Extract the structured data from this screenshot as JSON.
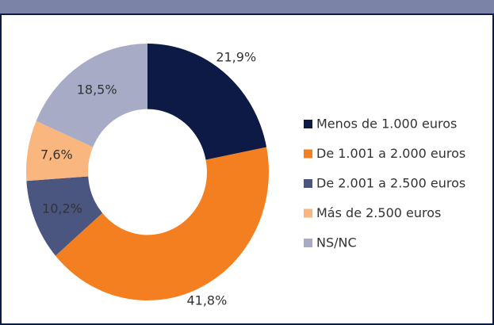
{
  "chart_data": {
    "type": "donut",
    "categories": [
      "Menos de 1.000 euros",
      "De 1.001 a 2.000 euros",
      "De 2.001 a 2.500 euros",
      "Más de 2.500 euros",
      "NS/NC"
    ],
    "values": [
      21.9,
      41.8,
      10.2,
      7.6,
      18.5
    ],
    "value_labels": [
      "21,9%",
      "41,8%",
      "10,2%",
      "7,6%",
      "18,5%"
    ],
    "colors": [
      "#0d1a45",
      "#f47f20",
      "#4a5580",
      "#f9b67f",
      "#a7abc6"
    ],
    "legend": "right"
  }
}
